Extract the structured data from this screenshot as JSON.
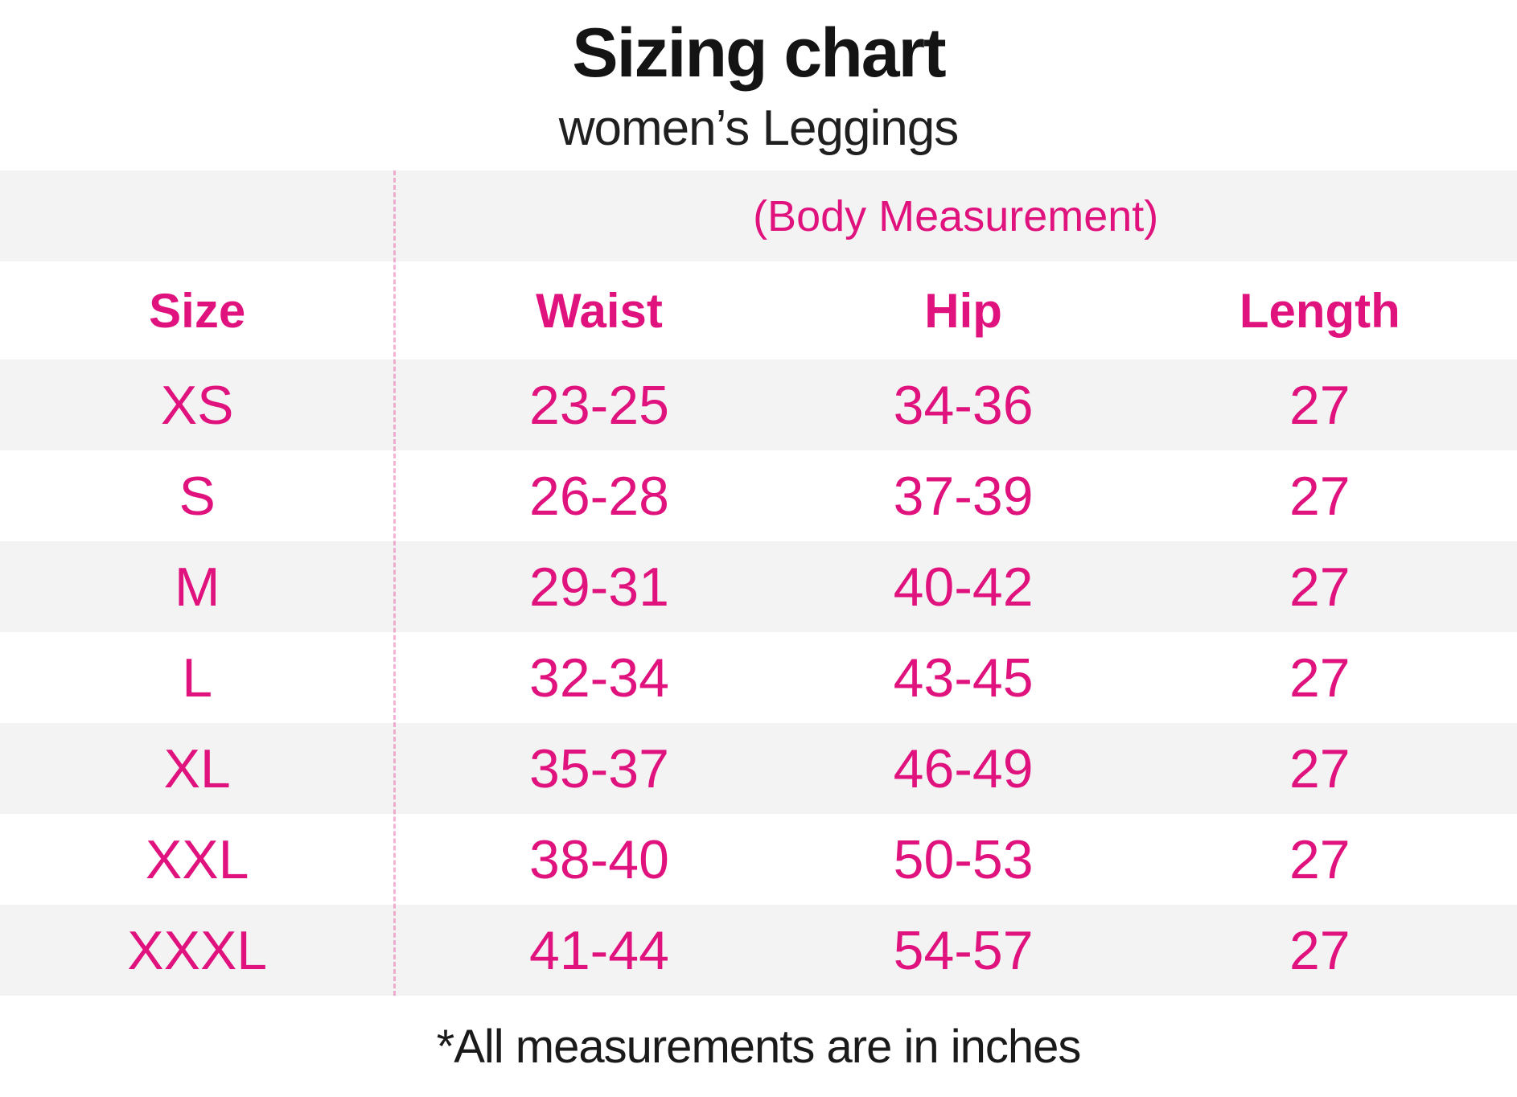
{
  "page": {
    "title": "Sizing chart",
    "subtitle": "women’s Leggings",
    "footnote": "*All measurements are in inches"
  },
  "colors": {
    "accent_pink": "#e0127d",
    "row_shade_gray": "#f3f3f4",
    "text_black": "#1a1a1a",
    "divider_dashed_pink": "rgba(224,18,125,0.32)"
  },
  "chart_data": {
    "type": "table",
    "title": "Sizing chart",
    "subtitle": "women’s Leggings",
    "group_header": "(Body Measurement)",
    "columns": [
      "Size",
      "Waist",
      "Hip",
      "Length"
    ],
    "units": "inches",
    "note": "*All measurements are in inches",
    "rows": [
      {
        "size": "XS",
        "waist": "23-25",
        "hip": "34-36",
        "length": "27"
      },
      {
        "size": "S",
        "waist": "26-28",
        "hip": "37-39",
        "length": "27"
      },
      {
        "size": "M",
        "waist": "29-31",
        "hip": "40-42",
        "length": "27"
      },
      {
        "size": "L",
        "waist": "32-34",
        "hip": "43-45",
        "length": "27"
      },
      {
        "size": "XL",
        "waist": "35-37",
        "hip": "46-49",
        "length": "27"
      },
      {
        "size": "XXL",
        "waist": "38-40",
        "hip": "50-53",
        "length": "27"
      },
      {
        "size": "XXXL",
        "waist": "41-44",
        "hip": "54-57",
        "length": "27"
      }
    ]
  }
}
